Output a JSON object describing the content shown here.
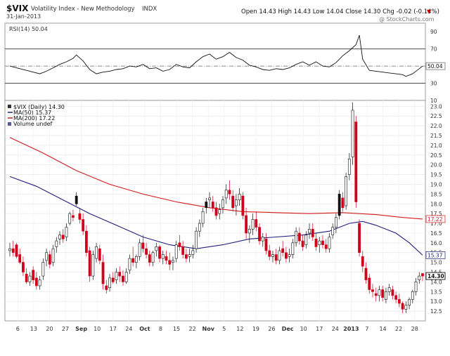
{
  "header": {
    "symbol": "$VIX",
    "name": "Volatility Index - New Methodology",
    "exchange": "INDX",
    "date": "31-Jan-2013",
    "stats_line": "Open 14.43  High 14.43  Low 14.04  Close 14.30  Chg -0.02 (-0.14%)",
    "trend_marker": "▼",
    "watermark": "@ StockCharts.com"
  },
  "rsi_panel": {
    "label": "RSI(14) 50.04",
    "last_value_tag": "50.04",
    "ylim": [
      10,
      100
    ],
    "ticks": [
      90,
      70,
      50,
      30,
      10
    ],
    "overbought": 70,
    "oversold": 30
  },
  "price_panel": {
    "legend": [
      {
        "text": "$VIX (Daily) 14.30",
        "color": "#000000"
      },
      {
        "text": "MA(50) 15.37",
        "color": "#1f1f7a"
      },
      {
        "text": "MA(200) 17.22",
        "color": "#d21a1a"
      },
      {
        "text": "Volume undef",
        "color": "#000000"
      }
    ],
    "tags": {
      "ma200": "17.22",
      "ma50": "15.37",
      "close": "14.30"
    },
    "ylim": [
      12.0,
      23.3
    ],
    "ticks": [
      23.0,
      22.5,
      22.0,
      21.5,
      21.0,
      20.5,
      20.0,
      19.5,
      19.0,
      18.5,
      18.0,
      17.5,
      17.0,
      16.5,
      16.0,
      15.5,
      15.0,
      14.5,
      14.0,
      13.5,
      13.0,
      12.5
    ],
    "tick_labels": [
      "23.0",
      "22.5",
      "22.0",
      "21.5",
      "21.0",
      "20.5",
      "20.0",
      "19.5",
      "19.0",
      "18.5",
      "18.0",
      "17.5",
      "17.0",
      "16.5",
      "16.0",
      "15.5",
      "15.0",
      "14.5",
      "14.0",
      "13.5",
      "13.0",
      "12.5"
    ]
  },
  "x_axis": {
    "labels": [
      "6",
      "13",
      "20",
      "27",
      "Sep",
      "10",
      "17",
      "24",
      "Oct",
      "8",
      "15",
      "22",
      "Nov",
      "5",
      "12",
      "19",
      "26",
      "Dec",
      "10",
      "17",
      "24",
      "2013",
      "7",
      "14",
      "22",
      "28"
    ],
    "bold_labels": [
      "Sep",
      "Oct",
      "Nov",
      "Dec",
      "2013"
    ]
  },
  "chart_data": {
    "type": "candlestick",
    "title": "$VIX Volatility Index - New Methodology INDX",
    "period": "Daily",
    "n_sessions": 125,
    "ylim": [
      12.0,
      23.3
    ],
    "candles": [
      [
        15.6,
        16.0,
        15.3,
        15.7
      ],
      [
        15.7,
        16.1,
        15.3,
        15.5
      ],
      [
        15.9,
        16.0,
        15.2,
        15.3
      ],
      [
        15.4,
        15.7,
        14.9,
        15.0
      ],
      [
        15.0,
        15.3,
        14.3,
        14.5
      ],
      [
        14.4,
        14.7,
        13.9,
        14.0
      ],
      [
        14.0,
        14.5,
        13.8,
        14.3
      ],
      [
        14.6,
        14.8,
        13.9,
        14.1
      ],
      [
        14.2,
        14.5,
        13.6,
        13.8
      ],
      [
        13.8,
        14.3,
        13.6,
        14.1
      ],
      [
        14.3,
        15.2,
        14.1,
        15.0
      ],
      [
        15.1,
        15.7,
        14.8,
        15.5
      ],
      [
        15.4,
        15.6,
        14.7,
        14.9
      ],
      [
        15.0,
        15.9,
        14.8,
        15.7
      ],
      [
        15.8,
        16.3,
        15.5,
        16.1
      ],
      [
        16.2,
        16.6,
        15.9,
        16.4
      ],
      [
        16.4,
        16.7,
        16.0,
        16.2
      ],
      [
        16.3,
        17.0,
        16.1,
        16.8
      ],
      [
        17.0,
        17.6,
        16.9,
        17.5
      ],
      [
        17.4,
        17.7,
        17.1,
        17.3
      ],
      [
        18.0,
        18.6,
        17.9,
        18.4
      ],
      [
        17.5,
        17.8,
        17.0,
        17.2
      ],
      [
        17.2,
        17.5,
        16.4,
        16.6
      ],
      [
        16.6,
        16.9,
        15.3,
        15.5
      ],
      [
        15.6,
        15.8,
        14.0,
        14.3
      ],
      [
        14.3,
        15.6,
        14.1,
        15.4
      ],
      [
        15.2,
        16.0,
        15.0,
        15.8
      ],
      [
        15.7,
        15.9,
        14.9,
        15.1
      ],
      [
        15.0,
        15.4,
        13.6,
        13.9
      ],
      [
        13.8,
        14.1,
        13.4,
        13.6
      ],
      [
        13.7,
        14.4,
        13.5,
        14.2
      ],
      [
        14.2,
        14.5,
        13.9,
        14.0
      ],
      [
        14.1,
        14.7,
        13.9,
        14.5
      ],
      [
        14.5,
        14.8,
        14.0,
        14.3
      ],
      [
        14.3,
        14.6,
        13.8,
        14.0
      ],
      [
        14.0,
        14.7,
        13.9,
        14.5
      ],
      [
        14.6,
        15.4,
        14.4,
        15.2
      ],
      [
        15.2,
        15.8,
        14.8,
        15.0
      ],
      [
        15.0,
        15.4,
        14.7,
        15.3
      ],
      [
        15.3,
        16.2,
        15.1,
        16.0
      ],
      [
        16.0,
        16.4,
        15.5,
        15.7
      ],
      [
        15.7,
        16.0,
        15.2,
        15.4
      ],
      [
        15.4,
        15.6,
        14.8,
        15.0
      ],
      [
        15.0,
        15.6,
        14.8,
        15.5
      ],
      [
        15.6,
        16.0,
        15.3,
        15.8
      ],
      [
        15.8,
        15.9,
        15.0,
        15.2
      ],
      [
        15.2,
        15.6,
        14.9,
        15.4
      ],
      [
        15.3,
        15.6,
        14.9,
        15.1
      ],
      [
        15.1,
        15.5,
        14.6,
        14.9
      ],
      [
        15.0,
        15.3,
        14.6,
        15.1
      ],
      [
        15.2,
        16.1,
        15.0,
        15.9
      ],
      [
        16.0,
        16.4,
        15.6,
        15.8
      ],
      [
        15.8,
        16.1,
        15.2,
        15.4
      ],
      [
        15.4,
        15.7,
        15.0,
        15.2
      ],
      [
        15.3,
        15.7,
        15.0,
        15.4
      ],
      [
        15.4,
        15.9,
        15.2,
        15.6
      ],
      [
        15.7,
        16.8,
        15.5,
        16.6
      ],
      [
        16.6,
        17.2,
        16.3,
        17.0
      ],
      [
        17.0,
        17.8,
        16.8,
        17.6
      ],
      [
        17.8,
        18.3,
        17.5,
        18.1
      ],
      [
        18.2,
        18.6,
        17.8,
        18.3
      ],
      [
        18.1,
        18.4,
        17.6,
        17.8
      ],
      [
        17.8,
        18.1,
        17.2,
        17.4
      ],
      [
        17.5,
        18.0,
        17.2,
        17.7
      ],
      [
        17.8,
        18.4,
        17.5,
        18.2
      ],
      [
        18.3,
        19.0,
        18.0,
        18.7
      ],
      [
        18.7,
        19.2,
        18.2,
        18.5
      ],
      [
        18.4,
        18.7,
        17.6,
        17.8
      ],
      [
        17.9,
        18.5,
        17.4,
        18.2
      ],
      [
        18.2,
        18.8,
        17.9,
        18.5
      ],
      [
        18.4,
        18.6,
        17.2,
        17.4
      ],
      [
        17.4,
        17.8,
        16.2,
        16.5
      ],
      [
        16.5,
        16.9,
        16.0,
        16.7
      ],
      [
        16.7,
        17.5,
        16.4,
        17.2
      ],
      [
        17.2,
        17.6,
        16.6,
        16.8
      ],
      [
        16.8,
        17.0,
        15.9,
        16.1
      ],
      [
        16.1,
        16.5,
        15.8,
        16.3
      ],
      [
        16.2,
        16.5,
        15.4,
        15.6
      ],
      [
        15.6,
        15.9,
        15.1,
        15.3
      ],
      [
        15.3,
        15.6,
        15.0,
        15.4
      ],
      [
        15.4,
        15.7,
        14.9,
        15.1
      ],
      [
        15.1,
        15.8,
        14.9,
        15.6
      ],
      [
        15.7,
        16.1,
        15.3,
        15.5
      ],
      [
        15.5,
        15.8,
        15.0,
        15.2
      ],
      [
        15.3,
        15.7,
        15.0,
        15.4
      ],
      [
        15.4,
        16.2,
        15.2,
        16.0
      ],
      [
        16.0,
        16.8,
        15.8,
        16.6
      ],
      [
        16.5,
        16.8,
        15.9,
        16.1
      ],
      [
        16.1,
        16.4,
        15.6,
        15.8
      ],
      [
        15.9,
        16.6,
        15.7,
        16.4
      ],
      [
        16.5,
        17.0,
        16.2,
        16.7
      ],
      [
        16.7,
        17.0,
        16.1,
        16.3
      ],
      [
        16.2,
        16.5,
        15.6,
        15.8
      ],
      [
        15.9,
        16.3,
        15.5,
        16.1
      ],
      [
        16.1,
        16.4,
        15.7,
        15.9
      ],
      [
        15.9,
        16.2,
        15.5,
        15.7
      ],
      [
        15.7,
        16.5,
        15.5,
        16.3
      ],
      [
        16.4,
        17.0,
        16.2,
        16.8
      ],
      [
        16.8,
        17.5,
        16.5,
        17.3
      ],
      [
        17.4,
        18.7,
        17.2,
        18.5
      ],
      [
        18.3,
        18.6,
        17.6,
        17.8
      ],
      [
        17.9,
        19.6,
        17.7,
        19.4
      ],
      [
        19.5,
        20.6,
        19.2,
        20.3
      ],
      [
        20.4,
        23.2,
        20.0,
        22.8
      ],
      [
        22.2,
        22.5,
        17.8,
        18.1
      ],
      [
        17.0,
        17.2,
        15.3,
        15.5
      ],
      [
        15.3,
        15.6,
        14.5,
        14.8
      ],
      [
        14.7,
        15.0,
        13.9,
        14.1
      ],
      [
        14.2,
        14.4,
        13.4,
        13.6
      ],
      [
        13.6,
        13.9,
        13.2,
        13.5
      ],
      [
        13.4,
        13.7,
        13.0,
        13.3
      ],
      [
        13.3,
        13.8,
        13.0,
        13.6
      ],
      [
        13.6,
        13.8,
        13.0,
        13.2
      ],
      [
        13.1,
        13.7,
        12.9,
        13.5
      ],
      [
        13.5,
        13.9,
        13.3,
        13.7
      ],
      [
        13.6,
        13.8,
        13.1,
        13.3
      ],
      [
        13.3,
        13.5,
        12.9,
        13.1
      ],
      [
        13.1,
        13.4,
        12.7,
        12.9
      ],
      [
        12.9,
        13.0,
        12.4,
        12.6
      ],
      [
        12.6,
        13.0,
        12.4,
        12.8
      ],
      [
        12.8,
        13.2,
        12.6,
        13.1
      ],
      [
        13.1,
        13.6,
        12.9,
        13.5
      ],
      [
        13.5,
        14.2,
        13.3,
        14.0
      ],
      [
        14.1,
        14.5,
        13.9,
        14.3
      ],
      [
        14.43,
        14.43,
        14.04,
        14.3
      ]
    ],
    "filled_candles": [
      20,
      59,
      99,
      100
    ],
    "ma50": [
      [
        0,
        19.4
      ],
      [
        8,
        18.9
      ],
      [
        16,
        18.2
      ],
      [
        24,
        17.5
      ],
      [
        32,
        16.9
      ],
      [
        40,
        16.3
      ],
      [
        48,
        15.9
      ],
      [
        56,
        15.7
      ],
      [
        64,
        15.9
      ],
      [
        72,
        16.2
      ],
      [
        80,
        16.3
      ],
      [
        88,
        16.4
      ],
      [
        96,
        16.6
      ],
      [
        102,
        17.0
      ],
      [
        106,
        17.1
      ],
      [
        110,
        16.9
      ],
      [
        116,
        16.5
      ],
      [
        120,
        16.0
      ],
      [
        124,
        15.37
      ]
    ],
    "ma200": [
      [
        0,
        21.4
      ],
      [
        10,
        20.6
      ],
      [
        20,
        19.7
      ],
      [
        30,
        19.0
      ],
      [
        40,
        18.5
      ],
      [
        50,
        18.1
      ],
      [
        60,
        17.8
      ],
      [
        70,
        17.6
      ],
      [
        80,
        17.55
      ],
      [
        90,
        17.5
      ],
      [
        100,
        17.55
      ],
      [
        110,
        17.45
      ],
      [
        118,
        17.3
      ],
      [
        124,
        17.22
      ]
    ],
    "rsi": [
      [
        0,
        50
      ],
      [
        3,
        47
      ],
      [
        6,
        44
      ],
      [
        9,
        41
      ],
      [
        11,
        44
      ],
      [
        13,
        48
      ],
      [
        15,
        52
      ],
      [
        17,
        55
      ],
      [
        19,
        59
      ],
      [
        20,
        63
      ],
      [
        22,
        56
      ],
      [
        24,
        46
      ],
      [
        26,
        41
      ],
      [
        28,
        43
      ],
      [
        30,
        44
      ],
      [
        32,
        46
      ],
      [
        34,
        47
      ],
      [
        36,
        50
      ],
      [
        38,
        49
      ],
      [
        40,
        52
      ],
      [
        42,
        47
      ],
      [
        44,
        48
      ],
      [
        46,
        44
      ],
      [
        48,
        46
      ],
      [
        50,
        52
      ],
      [
        52,
        49
      ],
      [
        54,
        48
      ],
      [
        56,
        55
      ],
      [
        58,
        61
      ],
      [
        60,
        64
      ],
      [
        62,
        58
      ],
      [
        64,
        61
      ],
      [
        66,
        66
      ],
      [
        68,
        60
      ],
      [
        70,
        57
      ],
      [
        72,
        51
      ],
      [
        74,
        49
      ],
      [
        76,
        46
      ],
      [
        78,
        45
      ],
      [
        80,
        47
      ],
      [
        82,
        46
      ],
      [
        84,
        48
      ],
      [
        86,
        52
      ],
      [
        88,
        55
      ],
      [
        90,
        51
      ],
      [
        92,
        55
      ],
      [
        94,
        50
      ],
      [
        96,
        49
      ],
      [
        98,
        54
      ],
      [
        100,
        62
      ],
      [
        102,
        68
      ],
      [
        104,
        75
      ],
      [
        105,
        86
      ],
      [
        106,
        58
      ],
      [
        108,
        45
      ],
      [
        110,
        44
      ],
      [
        112,
        43
      ],
      [
        114,
        42
      ],
      [
        116,
        41
      ],
      [
        118,
        40
      ],
      [
        119,
        38
      ],
      [
        121,
        41
      ],
      [
        123,
        47
      ],
      [
        124,
        50
      ]
    ]
  }
}
